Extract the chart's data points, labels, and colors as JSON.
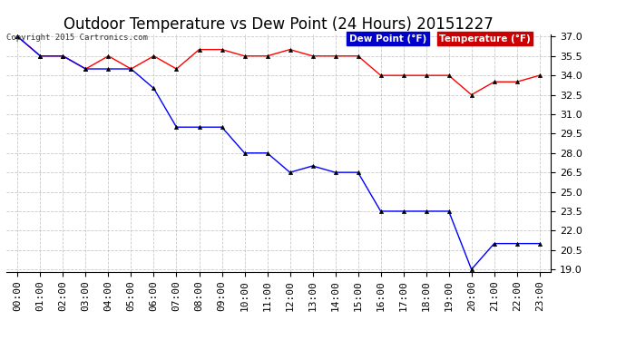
{
  "title": "Outdoor Temperature vs Dew Point (24 Hours) 20151227",
  "copyright": "Copyright 2015 Cartronics.com",
  "legend_dew": "Dew Point (°F)",
  "legend_temp": "Temperature (°F)",
  "x_labels": [
    "00:00",
    "01:00",
    "02:00",
    "03:00",
    "04:00",
    "05:00",
    "06:00",
    "07:00",
    "08:00",
    "09:00",
    "10:00",
    "11:00",
    "12:00",
    "13:00",
    "14:00",
    "15:00",
    "16:00",
    "17:00",
    "18:00",
    "19:00",
    "20:00",
    "21:00",
    "22:00",
    "23:00"
  ],
  "temperature": [
    37.0,
    35.5,
    35.5,
    34.5,
    35.5,
    34.5,
    35.5,
    34.5,
    36.0,
    36.0,
    35.5,
    35.5,
    36.0,
    35.5,
    35.5,
    35.5,
    34.0,
    34.0,
    34.0,
    34.0,
    32.5,
    33.5,
    33.5,
    34.0
  ],
  "dew_point": [
    37.0,
    35.5,
    35.5,
    34.5,
    34.5,
    34.5,
    33.0,
    30.0,
    30.0,
    30.0,
    28.0,
    28.0,
    26.5,
    27.0,
    26.5,
    26.5,
    23.5,
    23.5,
    23.5,
    23.5,
    19.0,
    21.0,
    21.0,
    21.0
  ],
  "ylim_min": 18.8,
  "ylim_max": 37.2,
  "yticks": [
    19.0,
    20.5,
    22.0,
    23.5,
    25.0,
    26.5,
    28.0,
    29.5,
    31.0,
    32.5,
    34.0,
    35.5,
    37.0
  ],
  "temp_color": "#ff0000",
  "dew_color": "#0000ff",
  "grid_color": "#bbbbbb",
  "bg_color": "#ffffff",
  "title_fontsize": 12,
  "axis_fontsize": 8,
  "dew_legend_bg": "#0000cc",
  "temp_legend_bg": "#cc0000"
}
